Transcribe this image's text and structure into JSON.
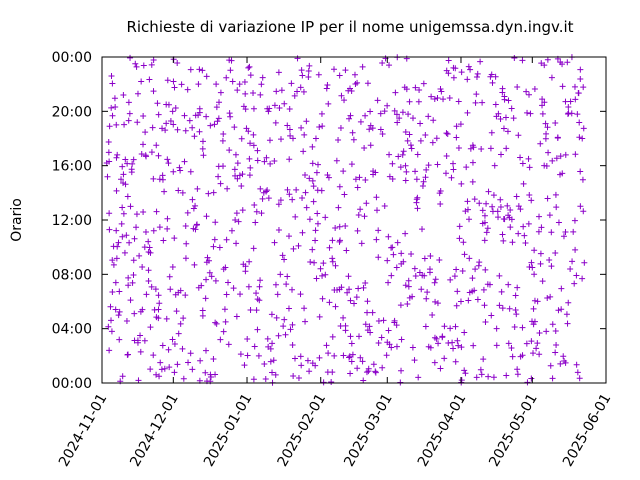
{
  "chart_data": {
    "type": "scatter",
    "title": "Richieste di variazione IP per il nome unigemssa.dyn.ingv.it",
    "xlabel": "",
    "ylabel": "Orario",
    "x_tick_labels": [
      "2024-11-01",
      "2024-12-01",
      "2025-01-01",
      "2025-02-01",
      "2025-03-01",
      "2025-04-01",
      "2025-05-01",
      "2025-06-01"
    ],
    "y_tick_labels": [
      "00:00",
      "04:00",
      "08:00",
      "12:00",
      "16:00",
      "20:00",
      "00:00"
    ],
    "xlim": [
      "2024-11-01",
      "2025-06-01"
    ],
    "ylim_hours": [
      0,
      24
    ],
    "point_color": "#8b00c8",
    "marker": "plus",
    "grid": false,
    "x_range_points": [
      "2024-11-03",
      "2025-05-22"
    ],
    "series": [
      {
        "points_sample": [
          [
            "2024-11-03",
            16.2
          ],
          [
            "2024-11-04",
            2.4
          ],
          [
            "2024-11-04",
            12.5
          ],
          [
            "2024-11-05",
            22.6
          ],
          [
            "2024-11-06",
            8.7
          ],
          [
            "2024-11-07",
            19.0
          ],
          [
            "2024-11-08",
            5.0
          ],
          [
            "2024-11-09",
            15.0
          ],
          [
            "2024-11-10",
            21.2
          ],
          [
            "2024-11-12",
            7.2
          ],
          [
            "2024-11-13",
            13.0
          ],
          [
            "2024-11-15",
            23.5
          ],
          [
            "2024-11-17",
            3.5
          ],
          [
            "2024-11-19",
            10.0
          ],
          [
            "2024-11-22",
            17.0
          ],
          [
            "2024-11-25",
            0.5
          ],
          [
            "2024-11-28",
            20.5
          ],
          [
            "2024-12-02",
            6.5
          ],
          [
            "2024-12-05",
            14.0
          ],
          [
            "2024-12-09",
            1.0
          ],
          [
            "2024-12-12",
            18.5
          ],
          [
            "2024-12-16",
            9.0
          ],
          [
            "2024-12-19",
            22.0
          ],
          [
            "2024-12-23",
            4.5
          ],
          [
            "2024-12-27",
            12.0
          ],
          [
            "2025-01-02",
            16.5
          ],
          [
            "2025-01-06",
            2.0
          ],
          [
            "2025-01-10",
            20.0
          ],
          [
            "2025-01-15",
            8.0
          ],
          [
            "2025-01-20",
            13.5
          ],
          [
            "2025-01-25",
            5.5
          ],
          [
            "2025-01-30",
            18.0
          ],
          [
            "2025-02-04",
            0.8
          ],
          [
            "2025-02-09",
            11.5
          ],
          [
            "2025-02-14",
            21.5
          ],
          [
            "2025-02-19",
            7.0
          ],
          [
            "2025-02-24",
            15.5
          ],
          [
            "2025-03-01",
            3.0
          ],
          [
            "2025-03-06",
            19.5
          ],
          [
            "2025-03-11",
            9.5
          ],
          [
            "2025-03-16",
            14.5
          ],
          [
            "2025-03-21",
            1.5
          ],
          [
            "2025-03-26",
            23.0
          ],
          [
            "2025-04-01",
            6.0
          ],
          [
            "2025-04-06",
            17.5
          ],
          [
            "2025-04-11",
            10.5
          ],
          [
            "2025-04-16",
            4.0
          ],
          [
            "2025-04-21",
            20.8
          ],
          [
            "2025-04-26",
            12.8
          ],
          [
            "2025-05-01",
            8.5
          ],
          [
            "2025-05-06",
            16.0
          ],
          [
            "2025-05-11",
            2.8
          ],
          [
            "2025-05-16",
            19.8
          ],
          [
            "2025-05-19",
            9.8
          ],
          [
            "2025-05-22",
            18.0
          ]
        ]
      }
    ]
  }
}
